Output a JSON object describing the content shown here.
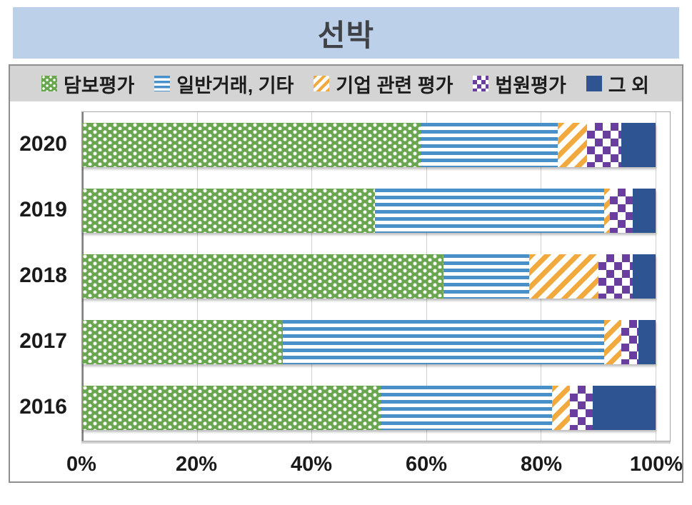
{
  "title": "선박",
  "chart_data": {
    "type": "bar",
    "orientation": "horizontal",
    "stacked": true,
    "unit": "%",
    "title": "선박",
    "categories": [
      "2020",
      "2019",
      "2018",
      "2017",
      "2016"
    ],
    "series": [
      {
        "name": "담보평가",
        "pattern": "green-dots",
        "color": "#69a64f",
        "values": [
          59,
          51,
          63,
          35,
          52
        ]
      },
      {
        "name": "일반거래, 기타",
        "pattern": "blue-hstripes",
        "color": "#4a90c8",
        "values": [
          24,
          40,
          15,
          56,
          30
        ]
      },
      {
        "name": "기업 관련 평가",
        "pattern": "yellow-diagonal",
        "color": "#f2a93d",
        "values": [
          5,
          1,
          12,
          3,
          3
        ]
      },
      {
        "name": "법원평가",
        "pattern": "purple-checker",
        "color": "#6a3e9e",
        "values": [
          6,
          4,
          6,
          3,
          4
        ]
      },
      {
        "name": "그 외",
        "pattern": "solid",
        "color": "#2f5492",
        "values": [
          6,
          4,
          4,
          3,
          11
        ]
      }
    ],
    "x_ticks": [
      "0%",
      "20%",
      "40%",
      "60%",
      "80%",
      "100%"
    ],
    "xlim": [
      0,
      100
    ],
    "grid": true,
    "legend_position": "top"
  },
  "colors": {
    "banner_bg": "#bdd0ea",
    "legend_bg": "#d4d4d4",
    "title_text": "#3f4347",
    "axis_text": "#1a1a1a",
    "gridline": "#d0d0d0",
    "frame_border": "#8f8f8f"
  }
}
